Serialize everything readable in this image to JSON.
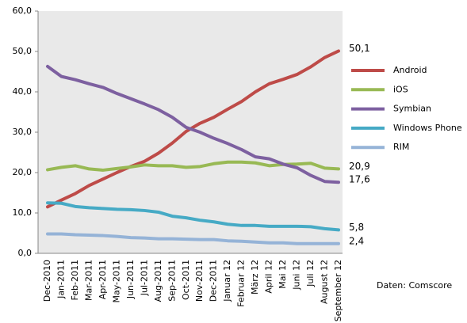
{
  "chart_data": {
    "type": "line",
    "categories": [
      "Dec-2010",
      "Jan-2011",
      "Feb-2011",
      "Mar-2011",
      "Apr-2011",
      "May-2011",
      "Jun-2011",
      "Jul-2011",
      "Aug-2011",
      "Sep-2011",
      "Oct-2011",
      "Nov-2011",
      "Dec-2011",
      "Januar 12",
      "Februar 12",
      "März 12",
      "April 12",
      "Mai 12",
      "Juni 12",
      "Juli 12",
      "August 12",
      "September 12"
    ],
    "series": [
      {
        "name": "Android",
        "color": "#be4b48",
        "values": [
          11.5,
          13.2,
          14.8,
          16.8,
          18.4,
          20,
          21.5,
          22.8,
          24.8,
          27.3,
          30.2,
          32.2,
          33.7,
          35.7,
          37.6,
          40,
          42,
          43.1,
          44.3,
          46.2,
          48.5,
          50.1
        ],
        "value_labels": [
          null,
          null,
          null,
          null,
          null,
          null,
          null,
          null,
          null,
          null,
          null,
          null,
          null,
          null,
          null,
          null,
          null,
          null,
          null,
          null,
          null,
          "50,1"
        ]
      },
      {
        "name": "iOS",
        "color": "#98b954",
        "values": [
          20.7,
          21.3,
          21.7,
          20.9,
          20.6,
          21,
          21.4,
          21.9,
          21.7,
          21.7,
          21.3,
          21.5,
          22.2,
          22.6,
          22.6,
          22.4,
          21.7,
          22,
          22.1,
          22.3,
          21.1,
          20.9
        ],
        "value_labels": [
          null,
          null,
          null,
          null,
          null,
          null,
          null,
          null,
          null,
          null,
          null,
          null,
          null,
          null,
          null,
          null,
          null,
          null,
          null,
          null,
          null,
          "20,9"
        ]
      },
      {
        "name": "Symbian",
        "color": "#7d60a0",
        "values": [
          46.3,
          43.8,
          43,
          42,
          41.1,
          39.6,
          38.3,
          37,
          35.6,
          33.7,
          31.2,
          30,
          28.5,
          27.2,
          25.7,
          23.9,
          23.4,
          22.1,
          21.2,
          19.3,
          17.8,
          17.6
        ],
        "value_labels": [
          null,
          null,
          null,
          null,
          null,
          null,
          null,
          null,
          null,
          null,
          null,
          null,
          null,
          null,
          null,
          null,
          null,
          null,
          null,
          null,
          null,
          "17,6"
        ]
      },
      {
        "name": "Windows Phone",
        "color": "#46aac5",
        "values": [
          12.5,
          12.4,
          11.6,
          11.3,
          11.1,
          10.9,
          10.8,
          10.6,
          10.2,
          9.2,
          8.8,
          8.2,
          7.8,
          7.2,
          6.9,
          6.9,
          6.7,
          6.7,
          6.7,
          6.6,
          6.1,
          5.8
        ],
        "value_labels": [
          null,
          null,
          null,
          null,
          null,
          null,
          null,
          null,
          null,
          null,
          null,
          null,
          null,
          null,
          null,
          null,
          null,
          null,
          null,
          null,
          null,
          "5,8"
        ]
      },
      {
        "name": "RIM",
        "color": "#95b3d7",
        "values": [
          4.8,
          4.8,
          4.6,
          4.5,
          4.4,
          4.2,
          3.9,
          3.8,
          3.6,
          3.6,
          3.5,
          3.4,
          3.4,
          3.1,
          3.0,
          2.8,
          2.6,
          2.6,
          2.4,
          2.4,
          2.4,
          2.4
        ],
        "value_labels": [
          null,
          null,
          null,
          null,
          null,
          null,
          null,
          null,
          null,
          null,
          null,
          null,
          null,
          null,
          null,
          null,
          null,
          null,
          null,
          null,
          null,
          "2,4"
        ]
      }
    ],
    "ylim": [
      0,
      60
    ],
    "yticks": [
      {
        "value": 0,
        "label": "0,0"
      },
      {
        "value": 10,
        "label": "10,0"
      },
      {
        "value": 20,
        "label": "20,0"
      },
      {
        "value": 30,
        "label": "30,0"
      },
      {
        "value": 40,
        "label": "40,0"
      },
      {
        "value": 50,
        "label": "50,0"
      },
      {
        "value": 60,
        "label": "60,0"
      }
    ],
    "legend": "right",
    "annotation": "Daten: Comscore"
  }
}
